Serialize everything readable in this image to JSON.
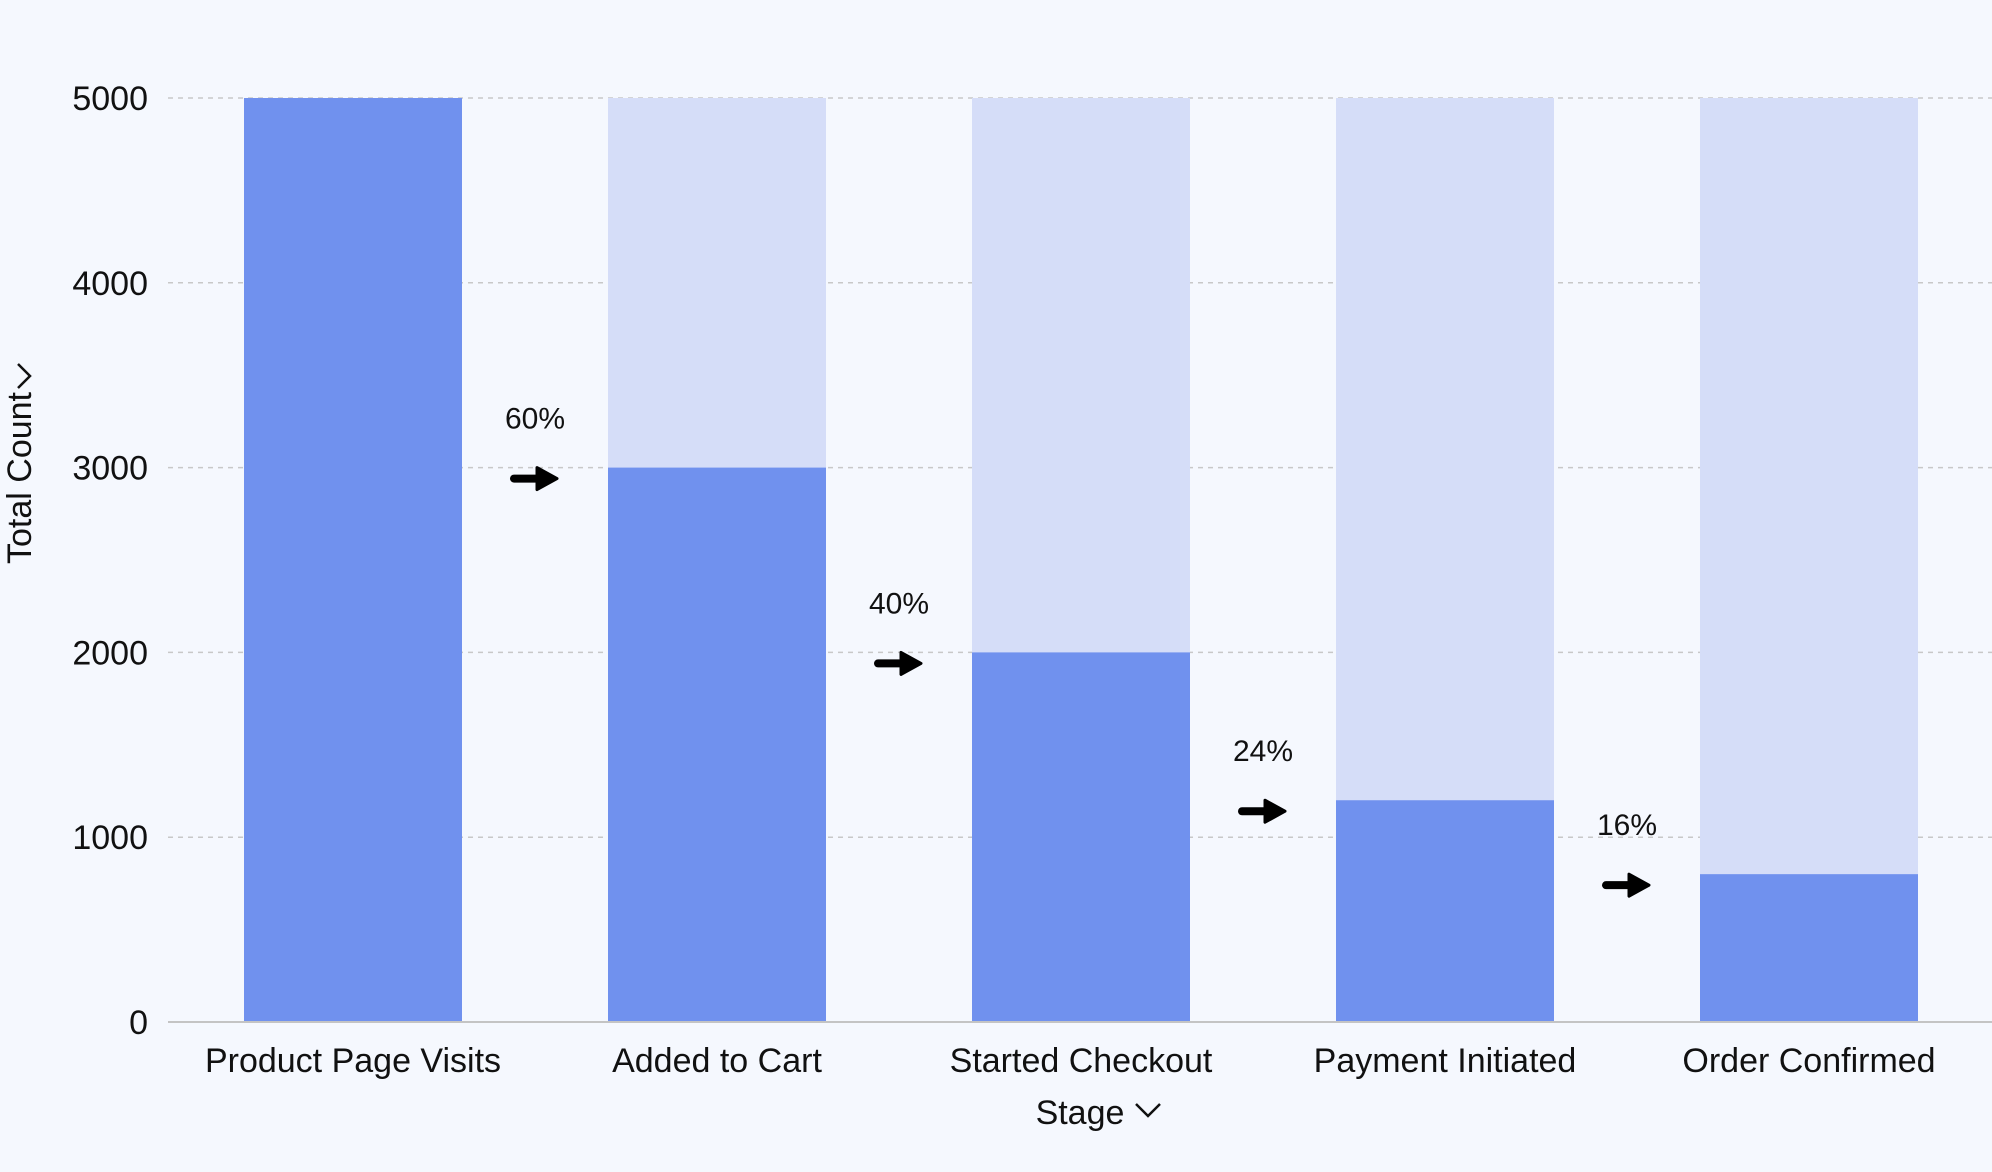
{
  "chart_data": {
    "type": "bar",
    "categories": [
      "Product Page Visits",
      "Added to Cart",
      "Started Checkout",
      "Payment Initiated",
      "Order Confirmed"
    ],
    "values": [
      5000,
      3000,
      2000,
      1200,
      800
    ],
    "conversion_labels": [
      "60%",
      "40%",
      "24%",
      "16%"
    ],
    "xlabel": "Stage",
    "ylabel": "Total Count",
    "ylim": [
      0,
      5000
    ],
    "yticks": [
      0,
      1000,
      2000,
      3000,
      4000,
      5000
    ],
    "grid": true,
    "colors": {
      "bar": "#7091ee",
      "background_bar": "#d5ddf8",
      "arrow": "#000000",
      "grid": "#c8c8c8"
    }
  }
}
